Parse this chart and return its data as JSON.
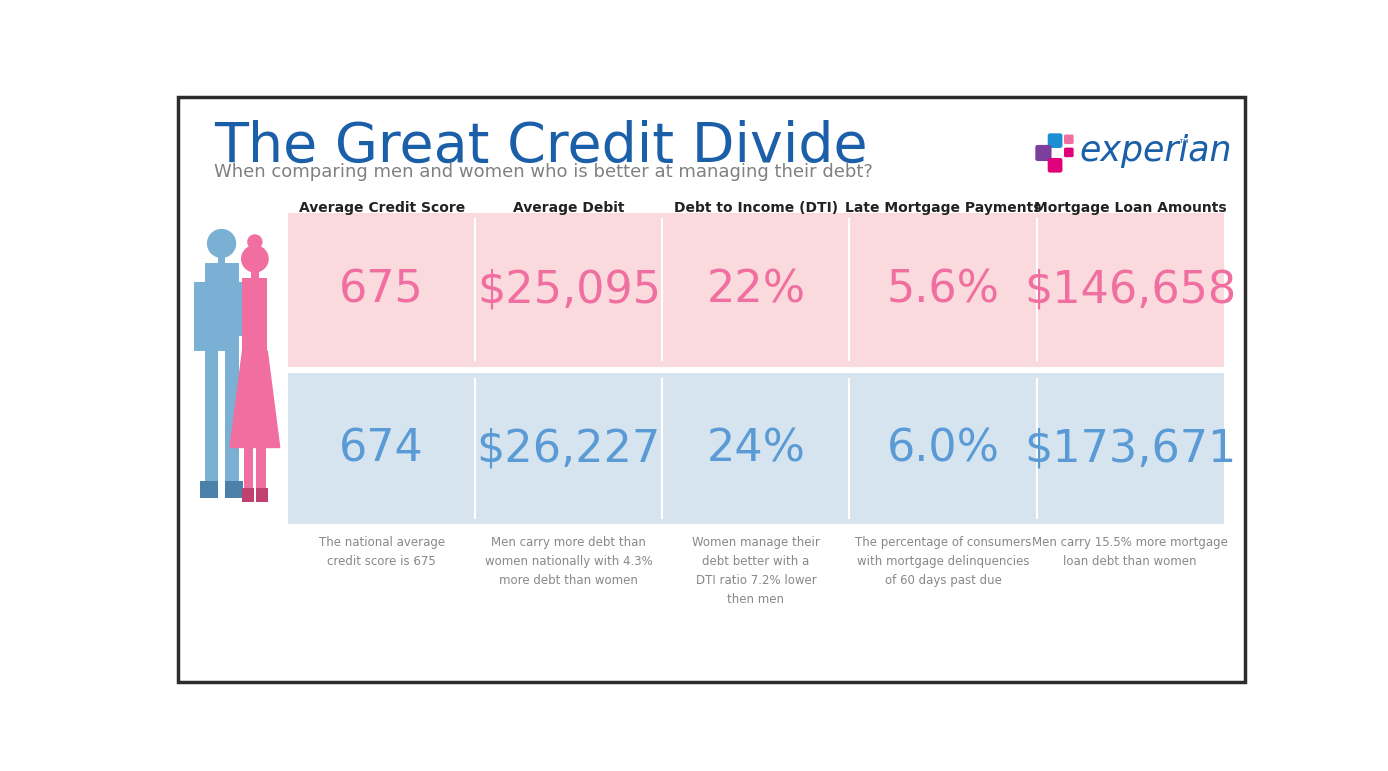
{
  "title": "The Great Credit Divide",
  "subtitle": "When comparing men and women who is better at managing their debt?",
  "title_color": "#1a5fa8",
  "subtitle_color": "#808080",
  "bg_color": "#ffffff",
  "border_color": "#2c2c2c",
  "columns": [
    "Average Credit Score",
    "Average Debit",
    "Debt to Income (DTI)",
    "Late Mortgage Payments",
    "Mortgage Loan Amounts"
  ],
  "women_values": [
    "675",
    "$25,095",
    "22%",
    "5.6%",
    "$146,658"
  ],
  "men_values": [
    "674",
    "$26,227",
    "24%",
    "6.0%",
    "$173,671"
  ],
  "women_color": "#f06fa0",
  "men_color": "#5b9bd5",
  "women_bg": "#fadadd",
  "men_bg": "#d6e4f0",
  "footnotes": [
    "The national average\ncredit score is 675",
    "Men carry more debt than\nwomen nationally with 4.3%\nmore debt than women",
    "Women manage their\ndebt better with a\nDTI ratio 7.2% lower\nthen men",
    "The percentage of consumers\nwith mortgage delinquencies\nof 60 days past due",
    "Men carry 15.5% more mortgage\nloan debt than women"
  ],
  "footnote_color": "#888888",
  "experian_blue": "#1a5fa8",
  "experian_cyan": "#1a8fd1",
  "experian_pink": "#f06fa0",
  "experian_purple": "#7b3f9e",
  "experian_magenta": "#e0007a"
}
